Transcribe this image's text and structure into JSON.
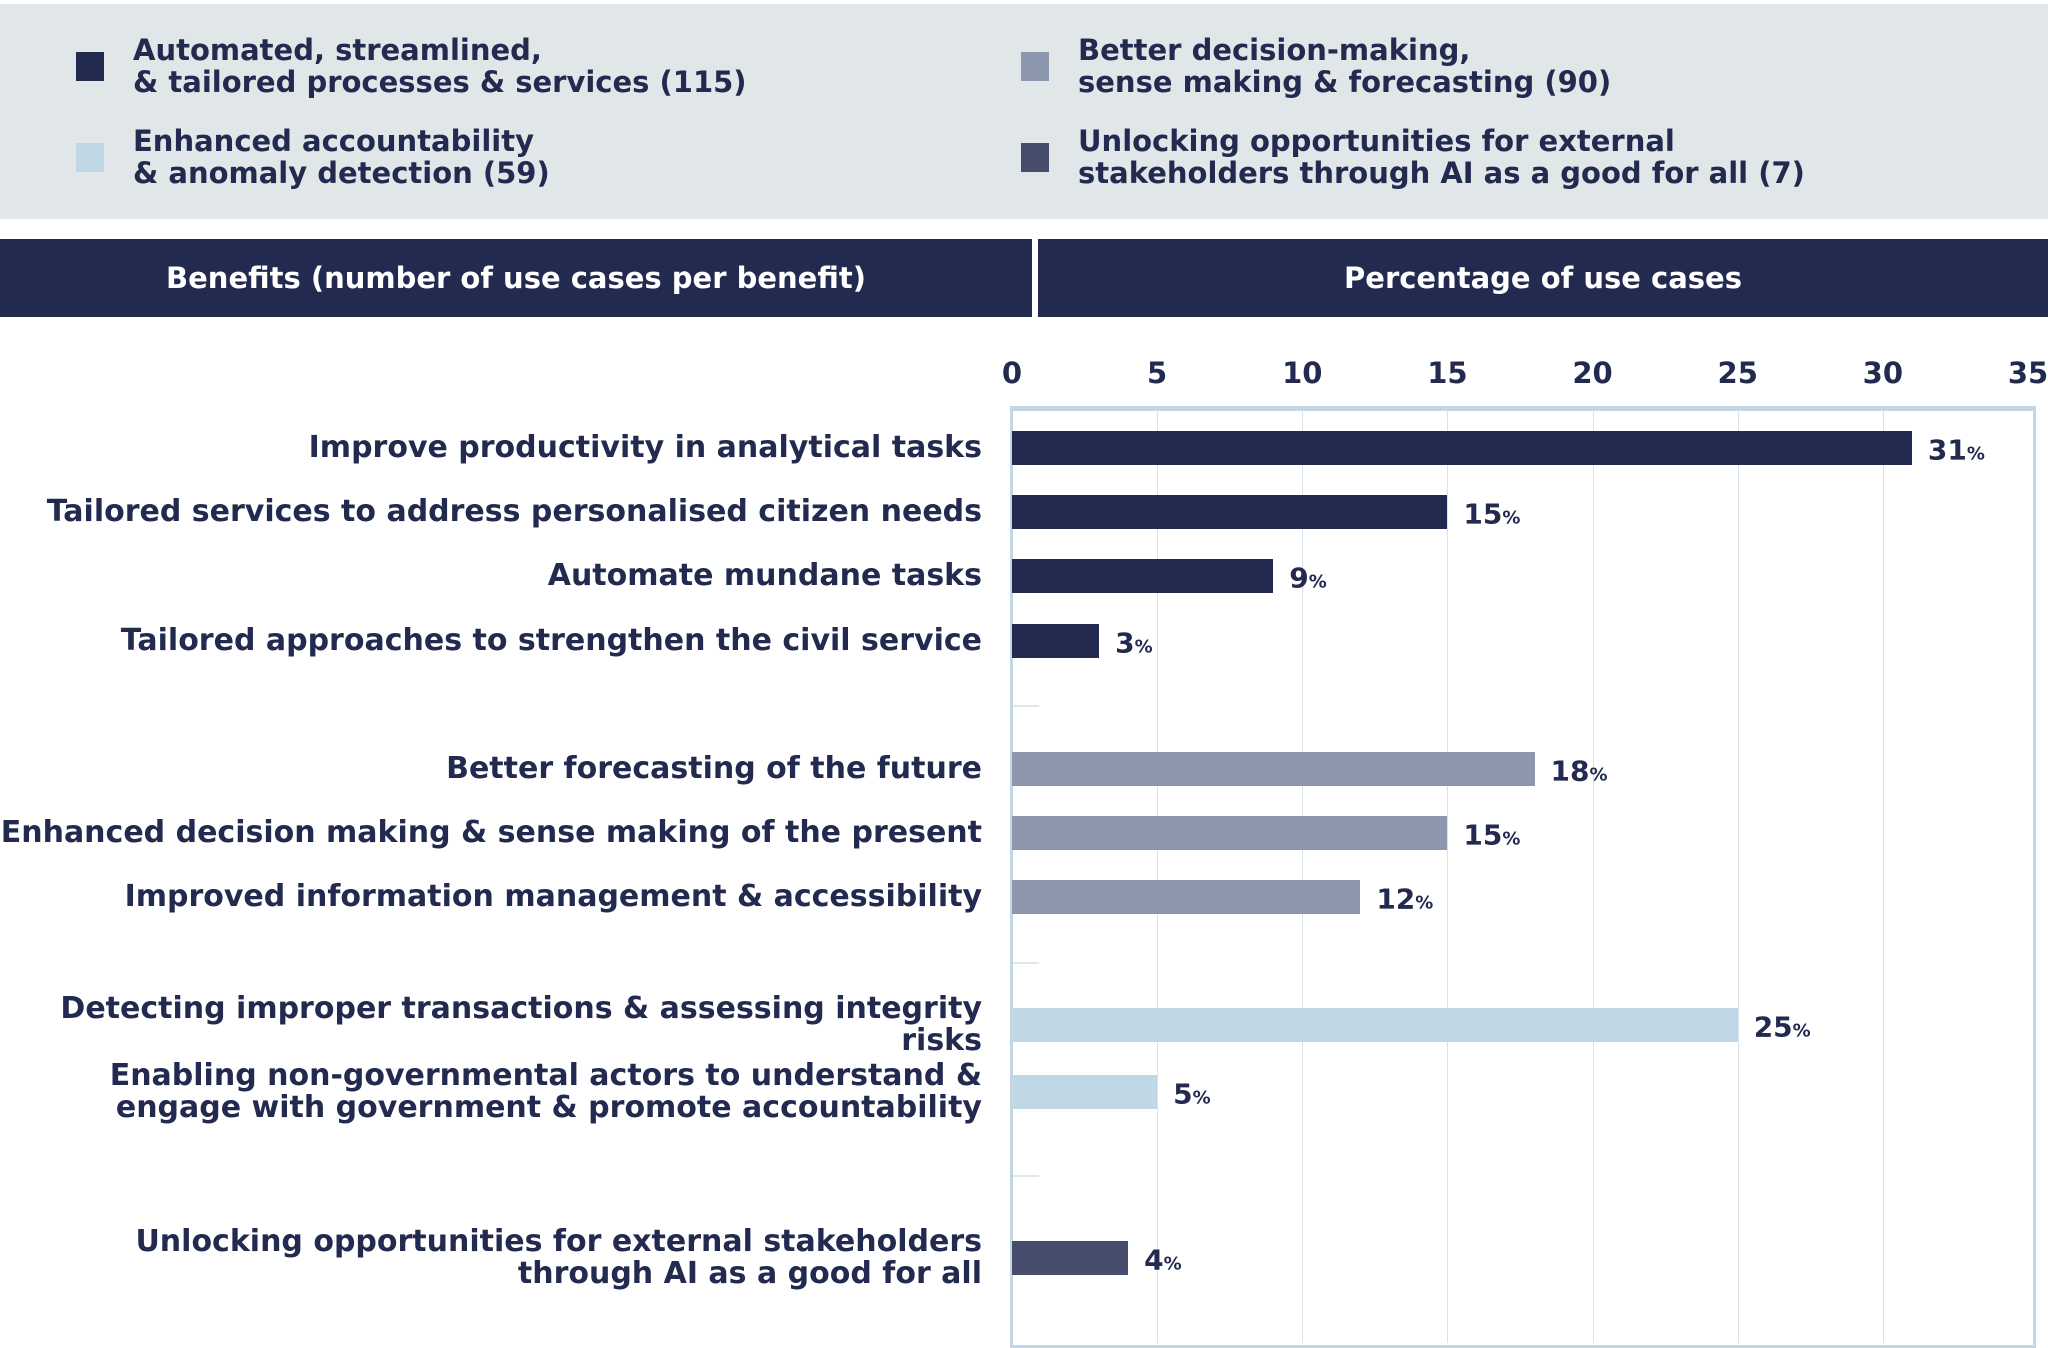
{
  "legend": [
    {
      "label": "Automated, streamlined,\n& tailored processes & services (115)",
      "color": "#222a4f"
    },
    {
      "label": "Better decision-making,\nsense making & forecasting (90)",
      "color": "#8c96ad"
    },
    {
      "label": "Enhanced accountability\n& anomaly detection (59)",
      "color": "#c0d7e6"
    },
    {
      "label": "Unlocking opportunities for external\nstakeholders through AI as a good for all (7)",
      "color": "#474d6c"
    }
  ],
  "headers": {
    "left": "Benefits (number of use cases per benefit)",
    "right": "Percentage of use cases"
  },
  "chart_data": {
    "type": "bar",
    "orientation": "horizontal",
    "xlim": [
      0,
      35
    ],
    "xticks": [
      "0",
      "5",
      "10",
      "15",
      "20",
      "25",
      "30",
      "35"
    ],
    "grid": true,
    "value_suffix": "%",
    "categories": [
      "Improve productivity in analytical tasks",
      "Tailored services to address personalised citizen needs",
      "Automate mundane tasks",
      "Tailored approaches to strengthen the civil service",
      "Better forecasting of the future",
      "Enhanced decision making & sense making of the present",
      "Improved information management & accessibility",
      "Detecting improper transactions & assessing integrity risks",
      "Enabling non-governmental actors to understand &\nengage with government & promote accountability",
      "Unlocking opportunities for external stakeholders\nthrough AI as a good for all"
    ],
    "values": [
      31,
      15,
      9,
      3,
      18,
      15,
      12,
      25,
      5,
      4
    ],
    "groups": [
      0,
      0,
      0,
      0,
      1,
      1,
      1,
      2,
      2,
      3
    ]
  }
}
